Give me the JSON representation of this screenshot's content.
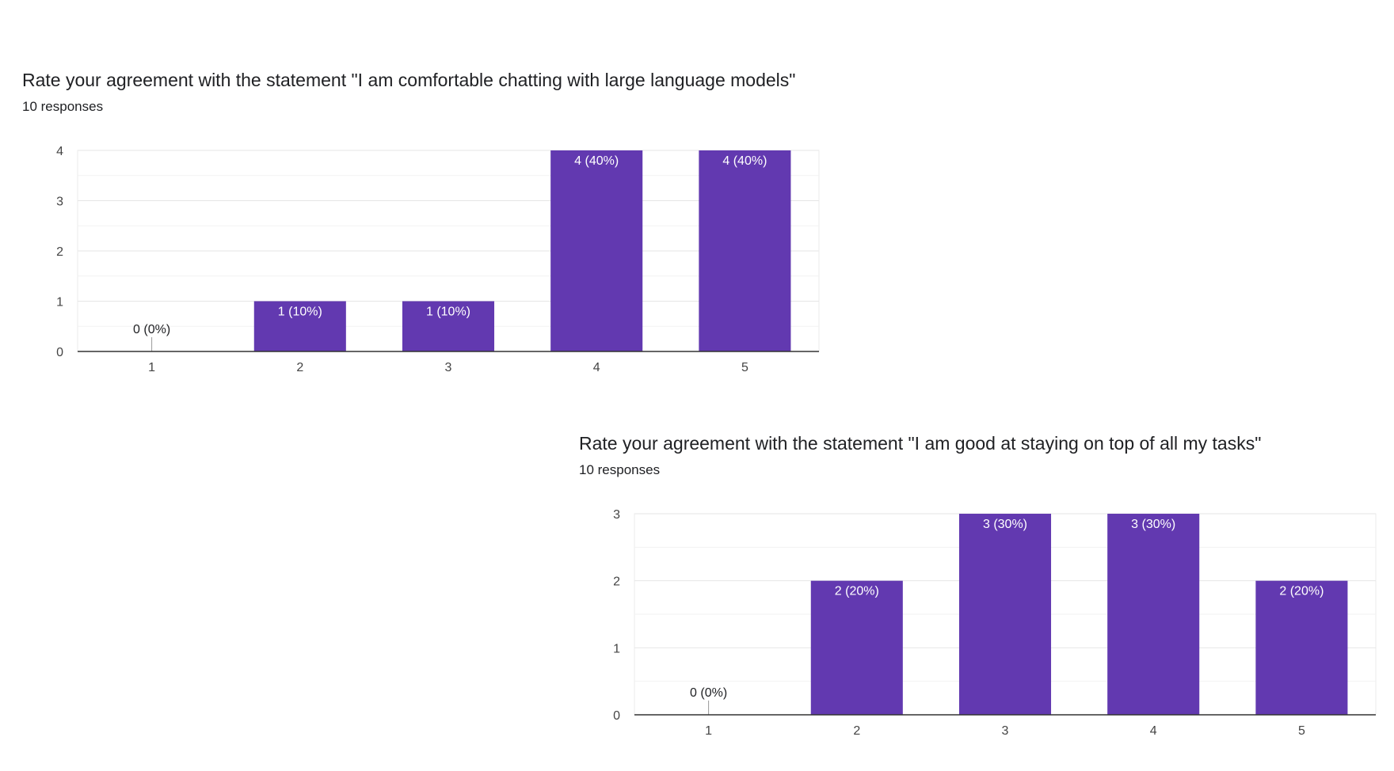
{
  "colors": {
    "bar": "#6239b0",
    "grid": "#ebebeb",
    "axis": "#333333",
    "label_inside": "#ffffff",
    "label_outside": "#202124"
  },
  "chart_data": [
    {
      "type": "bar",
      "title": "Rate your agreement with the statement \"I am comfortable chatting with large language models\"",
      "subtitle": "10 responses",
      "categories": [
        "1",
        "2",
        "3",
        "4",
        "5"
      ],
      "values": [
        0,
        1,
        1,
        4,
        4
      ],
      "data_labels": [
        "0 (0%)",
        "1 (10%)",
        "1 (10%)",
        "4 (40%)",
        "4 (40%)"
      ],
      "yticks": [
        "0",
        "1",
        "2",
        "3",
        "4"
      ],
      "ylim": [
        0,
        4
      ],
      "grid": true,
      "legend": "none"
    },
    {
      "type": "bar",
      "title": "Rate your agreement with the statement \"I am good at staying on top of all my tasks\"",
      "subtitle": "10 responses",
      "categories": [
        "1",
        "2",
        "3",
        "4",
        "5"
      ],
      "values": [
        0,
        2,
        3,
        3,
        2
      ],
      "data_labels": [
        "0 (0%)",
        "2 (20%)",
        "3 (30%)",
        "3 (30%)",
        "2 (20%)"
      ],
      "yticks": [
        "0",
        "1",
        "2",
        "3"
      ],
      "ylim": [
        0,
        3
      ],
      "grid": true,
      "legend": "none"
    }
  ]
}
